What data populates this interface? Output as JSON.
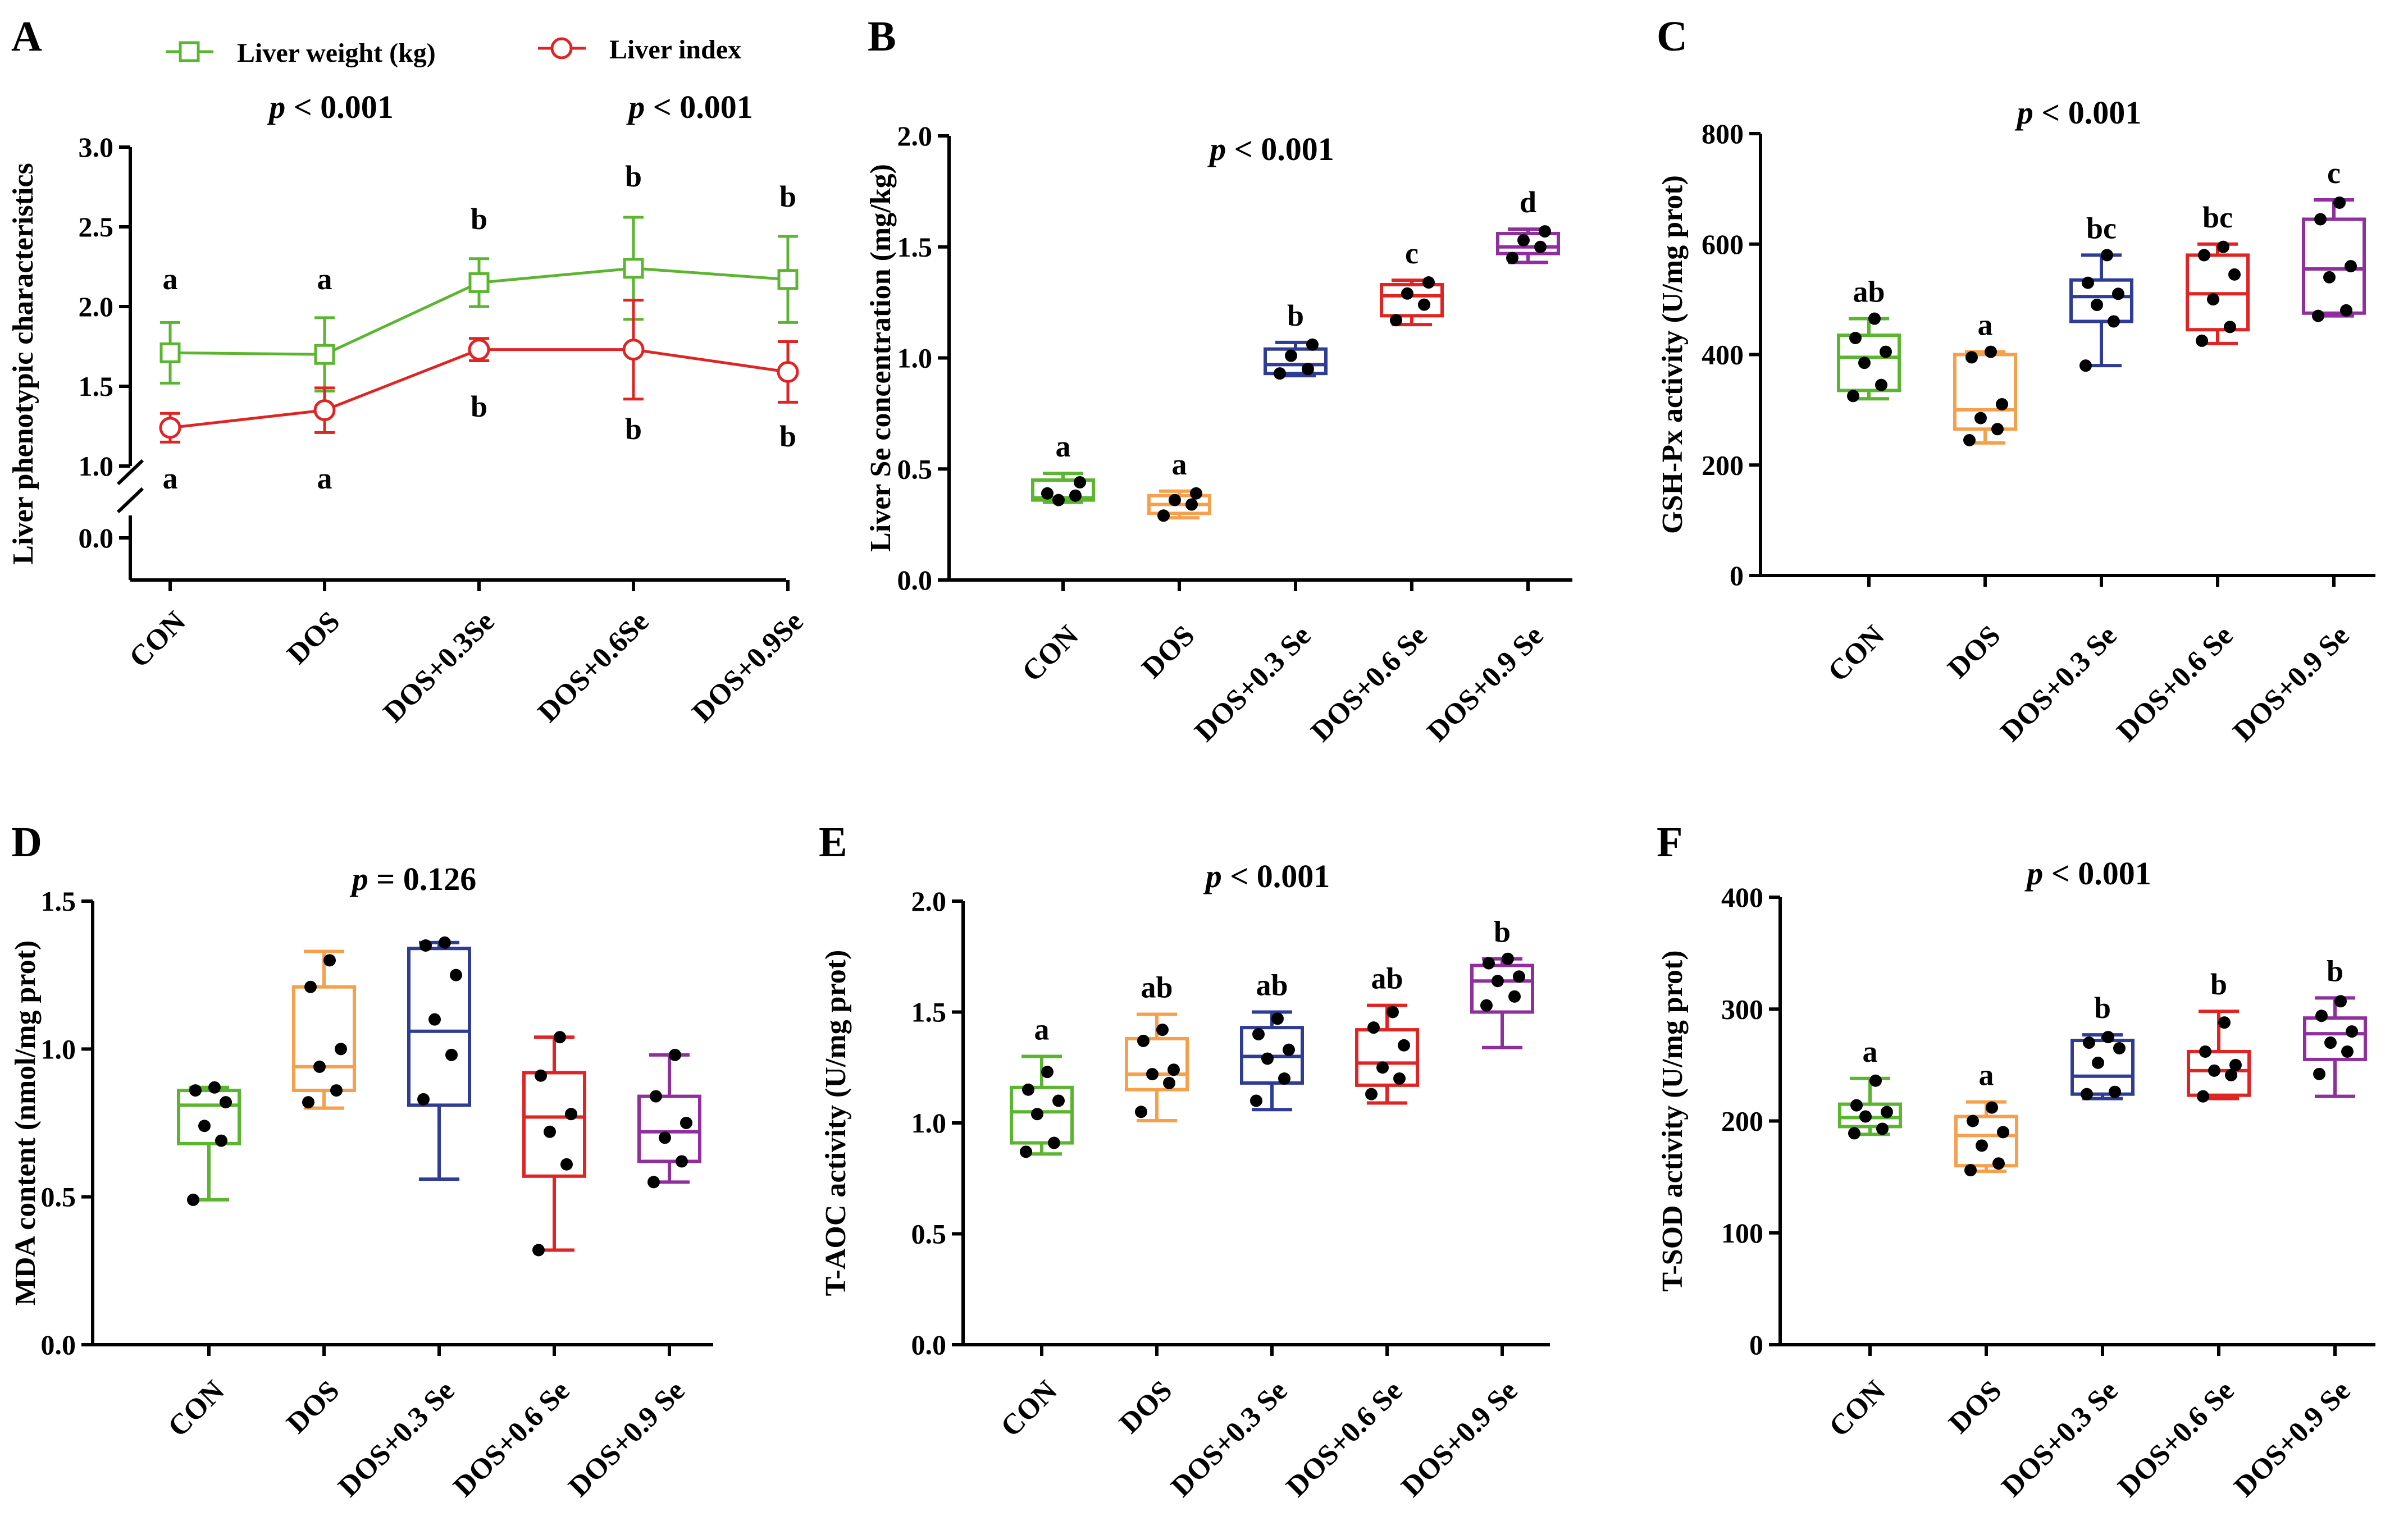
{
  "colors": {
    "CON": "#5cb531",
    "DOS": "#f4a04c",
    "DOS+0.3Se": "#2f3c96",
    "DOS+0.6Se": "#e02424",
    "DOS+0.9Se": "#8f2f9e",
    "axis": "#000000",
    "point": "#000000"
  },
  "chart_data": [
    {
      "panel": "A",
      "type": "line",
      "ylabel": "Liver phenotypic characteristics",
      "categories": [
        "CON",
        "DOS",
        "DOS+0.3Se",
        "DOS+0.6Se",
        "DOS+0.9Se"
      ],
      "ylim": [
        0,
        3.0
      ],
      "axis_break": [
        0.0,
        1.0
      ],
      "yticks": [
        "0.0",
        "1.0",
        "1.5",
        "2.0",
        "2.5",
        "3.0"
      ],
      "p_values": [
        "p < 0.001",
        "p < 0.001"
      ],
      "p_italic": "p",
      "p_rest": [
        " < 0.001",
        " < 0.001"
      ],
      "legend": [
        "Liver weight (kg)",
        "Liver index"
      ],
      "series": [
        {
          "name": "Liver weight (kg)",
          "color": "#5cb531",
          "marker": "square",
          "values": [
            1.71,
            1.7,
            2.15,
            2.24,
            2.17
          ],
          "err": [
            0.19,
            0.23,
            0.15,
            0.32,
            0.27
          ],
          "sig": [
            "a",
            "a",
            "b",
            "b",
            "b"
          ]
        },
        {
          "name": "Liver index",
          "color": "#e02424",
          "marker": "circle",
          "values": [
            1.24,
            1.35,
            1.73,
            1.73,
            1.59
          ],
          "err": [
            0.09,
            0.14,
            0.07,
            0.31,
            0.19
          ],
          "sig": [
            "a",
            "a",
            "b",
            "b",
            "b"
          ]
        }
      ]
    },
    {
      "panel": "B",
      "type": "box",
      "ylabel": "Liver Se concentration (mg/kg)",
      "categories": [
        "CON",
        "DOS",
        "DOS+0.3 Se",
        "DOS+0.6 Se",
        "DOS+0.9 Se"
      ],
      "ylim": [
        0,
        2.0
      ],
      "yticks": [
        "0.0",
        "0.5",
        "1.0",
        "1.5",
        "2.0"
      ],
      "p_italic": "p",
      "p_rest": " < 0.001",
      "boxes": [
        {
          "min": 0.35,
          "q1": 0.36,
          "median": 0.37,
          "q3": 0.45,
          "max": 0.48,
          "points": [
            0.39,
            0.38,
            0.36,
            0.44
          ],
          "sig": "a"
        },
        {
          "min": 0.28,
          "q1": 0.3,
          "median": 0.34,
          "q3": 0.38,
          "max": 0.4,
          "points": [
            0.29,
            0.34,
            0.36,
            0.39
          ],
          "sig": "a"
        },
        {
          "min": 0.92,
          "q1": 0.93,
          "median": 0.97,
          "q3": 1.04,
          "max": 1.07,
          "points": [
            0.93,
            0.95,
            1.01,
            1.06
          ],
          "sig": "b"
        },
        {
          "min": 1.15,
          "q1": 1.19,
          "median": 1.28,
          "q3": 1.33,
          "max": 1.35,
          "points": [
            1.17,
            1.24,
            1.29,
            1.34
          ],
          "sig": "c"
        },
        {
          "min": 1.43,
          "q1": 1.47,
          "median": 1.5,
          "q3": 1.56,
          "max": 1.58,
          "points": [
            1.45,
            1.5,
            1.53,
            1.57
          ],
          "sig": "d"
        }
      ]
    },
    {
      "panel": "C",
      "type": "box",
      "ylabel": "GSH-Px activity (U/mg prot)",
      "categories": [
        "CON",
        "DOS",
        "DOS+0.3 Se",
        "DOS+0.6 Se",
        "DOS+0.9 Se"
      ],
      "ylim": [
        0,
        800
      ],
      "yticks": [
        "0",
        "200",
        "400",
        "600",
        "800"
      ],
      "p_italic": "p",
      "p_rest": " < 0.001",
      "boxes": [
        {
          "min": 320,
          "q1": 335,
          "median": 395,
          "q3": 435,
          "max": 465,
          "points": [
            325,
            345,
            385,
            405,
            430,
            465
          ],
          "sig": "ab"
        },
        {
          "min": 240,
          "q1": 265,
          "median": 300,
          "q3": 400,
          "max": 405,
          "points": [
            245,
            265,
            285,
            310,
            395,
            405
          ],
          "sig": "a"
        },
        {
          "min": 380,
          "q1": 460,
          "median": 505,
          "q3": 535,
          "max": 580,
          "points": [
            380,
            460,
            490,
            510,
            530,
            580
          ],
          "sig": "bc"
        },
        {
          "min": 420,
          "q1": 445,
          "median": 510,
          "q3": 580,
          "max": 600,
          "points": [
            425,
            450,
            500,
            545,
            580,
            595
          ],
          "sig": "bc"
        },
        {
          "min": 470,
          "q1": 475,
          "median": 555,
          "q3": 645,
          "max": 680,
          "points": [
            470,
            480,
            540,
            560,
            645,
            675
          ],
          "sig": "c"
        }
      ]
    },
    {
      "panel": "D",
      "type": "box",
      "ylabel": "MDA content (nmol/mg prot)",
      "categories": [
        "CON",
        "DOS",
        "DOS+0.3 Se",
        "DOS+0.6 Se",
        "DOS+0.9 Se"
      ],
      "ylim": [
        0,
        1.5
      ],
      "yticks": [
        "0.0",
        "0.5",
        "1.0",
        "1.5"
      ],
      "p_italic": "p",
      "p_rest": " = 0.126",
      "boxes": [
        {
          "min": 0.49,
          "q1": 0.68,
          "median": 0.81,
          "q3": 0.86,
          "max": 0.87,
          "points": [
            0.49,
            0.69,
            0.74,
            0.82,
            0.86,
            0.87
          ],
          "sig": ""
        },
        {
          "min": 0.8,
          "q1": 0.86,
          "median": 0.94,
          "q3": 1.21,
          "max": 1.33,
          "points": [
            0.82,
            0.86,
            0.94,
            1.0,
            1.21,
            1.3
          ],
          "sig": ""
        },
        {
          "min": 0.56,
          "q1": 0.81,
          "median": 1.06,
          "q3": 1.34,
          "max": 1.36,
          "points": [
            0.83,
            0.98,
            1.1,
            1.25,
            1.35,
            1.36
          ],
          "sig": ""
        },
        {
          "min": 0.32,
          "q1": 0.57,
          "median": 0.77,
          "q3": 0.92,
          "max": 1.04,
          "points": [
            0.32,
            0.61,
            0.72,
            0.78,
            0.91,
            1.04
          ],
          "sig": ""
        },
        {
          "min": 0.55,
          "q1": 0.62,
          "median": 0.72,
          "q3": 0.84,
          "max": 0.98,
          "points": [
            0.55,
            0.62,
            0.7,
            0.75,
            0.84,
            0.98
          ],
          "sig": ""
        }
      ]
    },
    {
      "panel": "E",
      "type": "box",
      "ylabel": "T-AOC activity (U/mg prot)",
      "categories": [
        "CON",
        "DOS",
        "DOS+0.3 Se",
        "DOS+0.6 Se",
        "DOS+0.9 Se"
      ],
      "ylim": [
        0,
        2.0
      ],
      "yticks": [
        "0.0",
        "0.5",
        "1.0",
        "1.5",
        "2.0"
      ],
      "p_italic": "p",
      "p_rest": " < 0.001",
      "boxes": [
        {
          "min": 0.86,
          "q1": 0.91,
          "median": 1.05,
          "q3": 1.16,
          "max": 1.3,
          "points": [
            0.87,
            0.91,
            1.04,
            1.1,
            1.15,
            1.23
          ],
          "sig": "a"
        },
        {
          "min": 1.01,
          "q1": 1.15,
          "median": 1.22,
          "q3": 1.38,
          "max": 1.49,
          "points": [
            1.05,
            1.18,
            1.22,
            1.24,
            1.37,
            1.42
          ],
          "sig": "ab"
        },
        {
          "min": 1.06,
          "q1": 1.18,
          "median": 1.3,
          "q3": 1.43,
          "max": 1.5,
          "points": [
            1.1,
            1.2,
            1.29,
            1.33,
            1.4,
            1.47
          ],
          "sig": "ab"
        },
        {
          "min": 1.09,
          "q1": 1.17,
          "median": 1.27,
          "q3": 1.42,
          "max": 1.53,
          "points": [
            1.13,
            1.2,
            1.25,
            1.35,
            1.43,
            1.5
          ],
          "sig": "ab"
        },
        {
          "min": 1.34,
          "q1": 1.5,
          "median": 1.64,
          "q3": 1.71,
          "max": 1.74,
          "points": [
            1.53,
            1.57,
            1.64,
            1.66,
            1.72,
            1.74
          ],
          "sig": "b"
        }
      ]
    },
    {
      "panel": "F",
      "type": "box",
      "ylabel": "T-SOD activity (U/mg prot)",
      "categories": [
        "CON",
        "DOS",
        "DOS+0.3 Se",
        "DOS+0.6 Se",
        "DOS+0.9 Se"
      ],
      "ylim": [
        0,
        400
      ],
      "yticks": [
        "0",
        "100",
        "200",
        "300",
        "400"
      ],
      "p_italic": "p",
      "p_rest": " < 0.001",
      "boxes": [
        {
          "min": 188,
          "q1": 195,
          "median": 203,
          "q3": 215,
          "max": 238,
          "points": [
            189,
            193,
            204,
            208,
            214,
            236
          ],
          "sig": "a"
        },
        {
          "min": 155,
          "q1": 160,
          "median": 187,
          "q3": 204,
          "max": 217,
          "points": [
            156,
            162,
            178,
            190,
            200,
            212
          ],
          "sig": "a"
        },
        {
          "min": 220,
          "q1": 224,
          "median": 240,
          "q3": 272,
          "max": 277,
          "points": [
            224,
            226,
            252,
            265,
            270,
            275
          ],
          "sig": "b"
        },
        {
          "min": 220,
          "q1": 223,
          "median": 245,
          "q3": 262,
          "max": 298,
          "points": [
            222,
            241,
            245,
            250,
            262,
            288
          ],
          "sig": "b"
        },
        {
          "min": 222,
          "q1": 255,
          "median": 278,
          "q3": 292,
          "max": 310,
          "points": [
            242,
            262,
            270,
            280,
            294,
            307
          ],
          "sig": "b"
        }
      ]
    }
  ]
}
